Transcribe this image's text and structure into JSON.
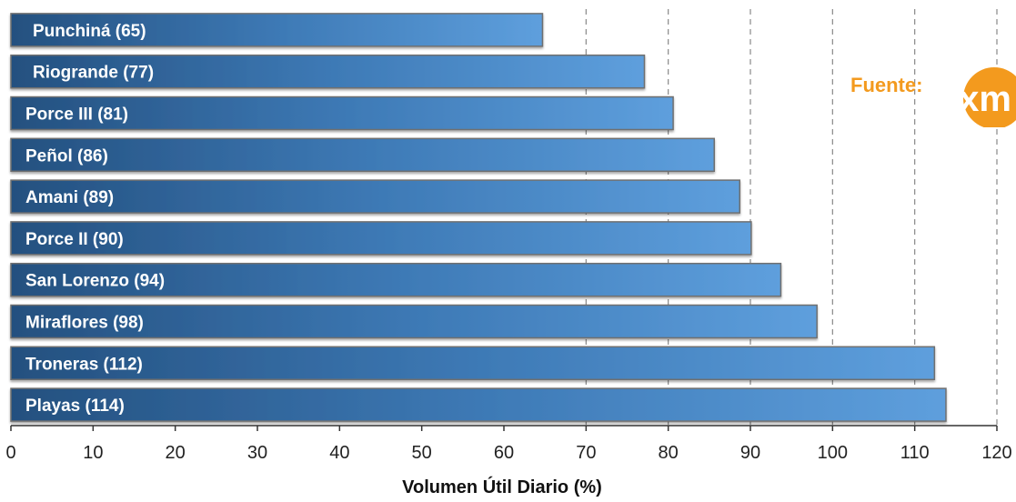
{
  "chart_data": {
    "type": "bar",
    "orientation": "horizontal",
    "categories": [
      "Punchiná (65)",
      "Riogrande (77)",
      "Porce III (81)",
      "Peñol (86)",
      "Amani (89)",
      "Porce II (90)",
      "San Lorenzo (94)",
      "Miraflores (98)",
      "Troneras (112)",
      "Playas (114)"
    ],
    "values": [
      64.7,
      77.1,
      80.6,
      85.6,
      88.7,
      90.1,
      93.7,
      98.1,
      112.4,
      113.8
    ],
    "xlabel": "Volumen Útil Diario (%)",
    "xlim": [
      0,
      120
    ],
    "xticks": [
      "0",
      "10",
      "20",
      "30",
      "40",
      "50",
      "60",
      "70",
      "80",
      "90",
      "100",
      "110",
      "120"
    ],
    "gridlines": [
      70,
      80,
      90,
      100,
      110,
      120
    ],
    "grid": "vertical dashed",
    "colors": {
      "bar_start": "#2b5688",
      "bar_end": "#5b9fdc",
      "grid": "#888888"
    }
  },
  "source": {
    "label": "Fuente:",
    "logo_text": "xm",
    "logo_color": "#f39a1e"
  }
}
